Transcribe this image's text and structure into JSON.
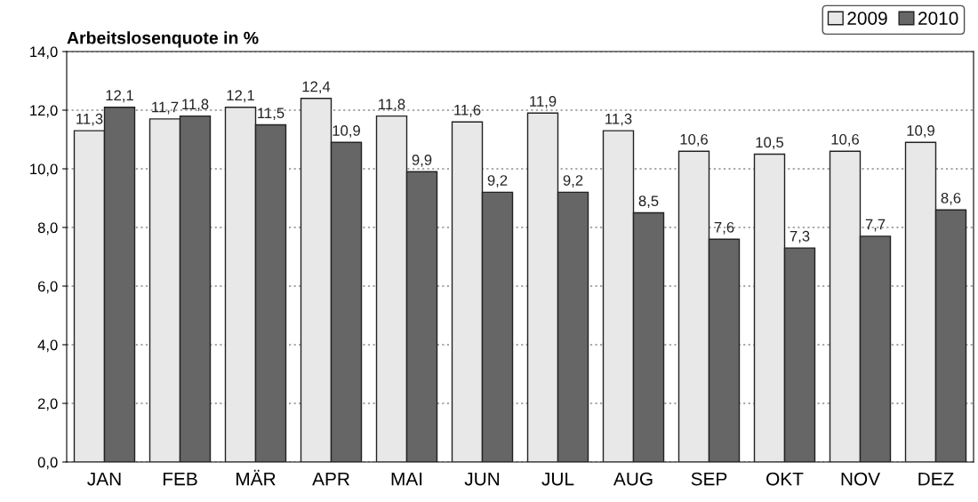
{
  "chart_data": {
    "type": "bar",
    "title": "Arbeitslosenquote in %",
    "categories": [
      "JAN",
      "FEB",
      "MÄR",
      "APR",
      "MAI",
      "JUN",
      "JUL",
      "AUG",
      "SEP",
      "OKT",
      "NOV",
      "DEZ"
    ],
    "series": [
      {
        "name": "2009",
        "color": "#e8e8e8",
        "values": [
          11.3,
          11.7,
          12.1,
          12.4,
          11.8,
          11.6,
          11.9,
          11.3,
          10.6,
          10.5,
          10.6,
          10.9
        ],
        "value_labels": [
          "11,3",
          "11,7",
          "12,1",
          "12,4",
          "11,8",
          "11,6",
          "11,9",
          "11,3",
          "10,6",
          "10,5",
          "10,6",
          "10,9"
        ]
      },
      {
        "name": "2010",
        "color": "#666666",
        "values": [
          12.1,
          11.8,
          11.5,
          10.9,
          9.9,
          9.2,
          9.2,
          8.5,
          7.6,
          7.3,
          7.7,
          8.6
        ],
        "value_labels": [
          "12,1",
          "11,8",
          "11,5",
          "10,9",
          "9,9",
          "9,2",
          "9,2",
          "8,5",
          "7,6",
          "7,3",
          "7,7",
          "8,6"
        ]
      }
    ],
    "ylim": [
      0,
      14
    ],
    "yticks": [
      {
        "value": 0,
        "label": "0,0"
      },
      {
        "value": 2,
        "label": "2,0"
      },
      {
        "value": 4,
        "label": "4,0"
      },
      {
        "value": 6,
        "label": "6,0"
      },
      {
        "value": 8,
        "label": "8,0"
      },
      {
        "value": 10,
        "label": "10,0"
      },
      {
        "value": 12,
        "label": "12,0"
      },
      {
        "value": 14,
        "label": "14,0"
      }
    ],
    "grid": "y",
    "legend": "top right"
  }
}
